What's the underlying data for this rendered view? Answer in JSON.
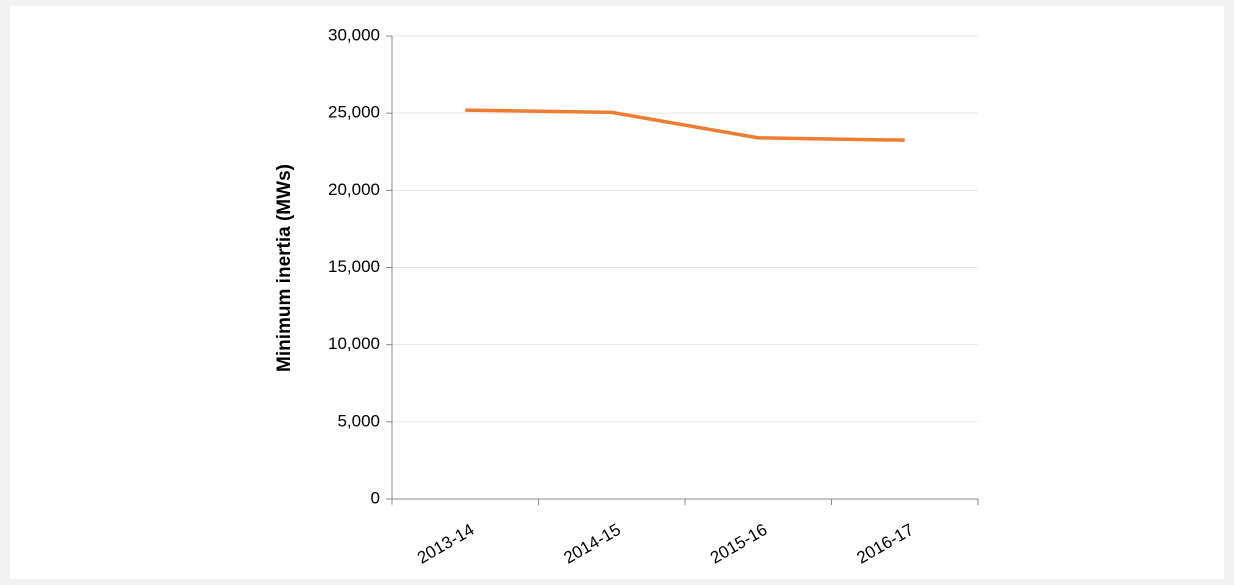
{
  "chart_data": {
    "type": "line",
    "y_label": "Minimum inertia (MWs)",
    "categories": [
      "2013-14",
      "2014-15",
      "2015-16",
      "2016-17"
    ],
    "series": [
      {
        "name": "Minimum inertia",
        "color": "#ed7d31",
        "values": [
          25200,
          25050,
          23400,
          23250
        ]
      }
    ],
    "ylim": [
      0,
      30000
    ],
    "yticks": [
      0,
      {
        "value": 5000,
        "label": "5,000"
      },
      {
        "value": 10000,
        "label": "10,000"
      },
      {
        "value": 15000,
        "label": "15,000"
      },
      {
        "value": 20000,
        "label": "20,000"
      },
      {
        "value": 25000,
        "label": "25,000"
      },
      {
        "value": 30000,
        "label": "30,000"
      }
    ],
    "grid": true
  }
}
